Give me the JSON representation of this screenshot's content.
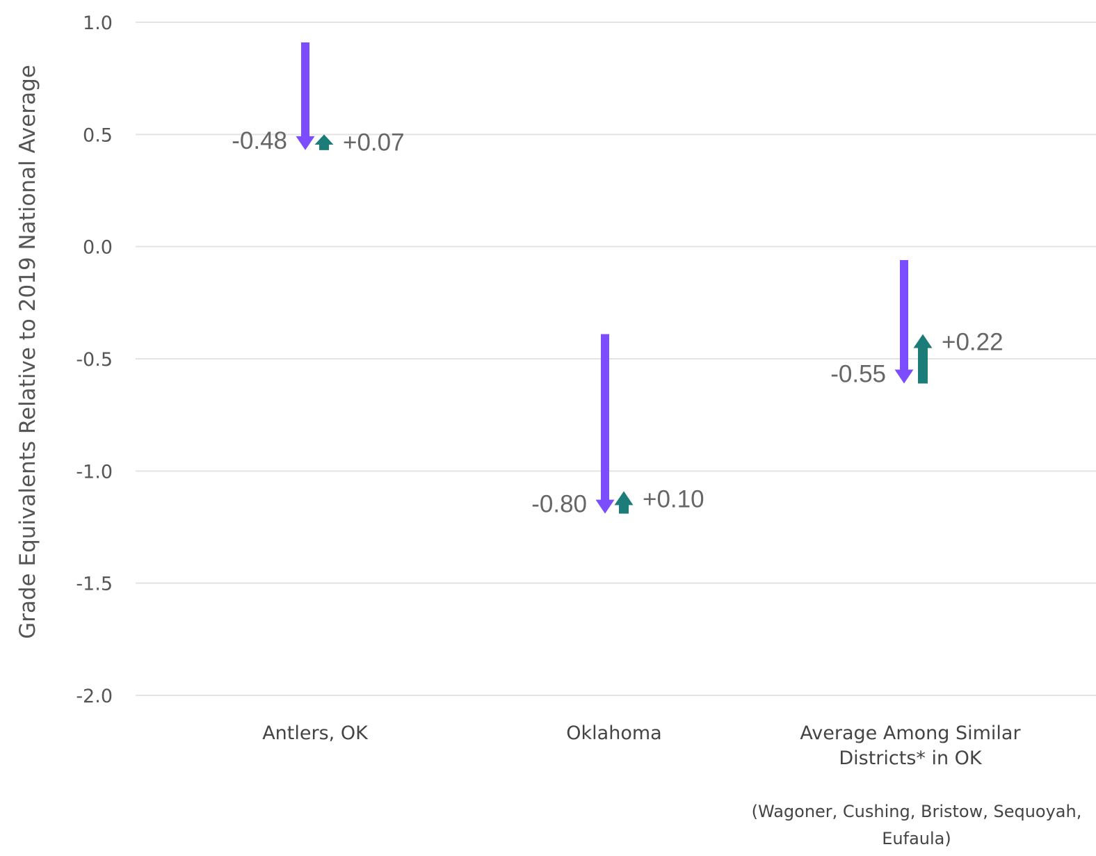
{
  "chart_data": {
    "type": "arrow-change",
    "ylabel": "Grade Equivalents Relative to 2019 National Average",
    "xlabel": "",
    "ylim": [
      -2.0,
      1.0
    ],
    "yticks": [
      1.0,
      0.5,
      0.0,
      -0.5,
      -1.0,
      -1.5,
      -2.0
    ],
    "ytick_labels": [
      "1.0",
      "0.5",
      "0.0",
      "-0.5",
      "-1.0",
      "-1.5",
      "-2.0"
    ],
    "grid": true,
    "colors": {
      "decline": "#7c4dff",
      "recovery": "#1b7c78"
    },
    "categories": [
      {
        "label_lines": [
          "Antlers, OK"
        ],
        "note_lines": [],
        "decline": {
          "from": 0.91,
          "to": 0.43,
          "label": "-0.48"
        },
        "recovery": {
          "from": 0.43,
          "to": 0.5,
          "label": "+0.07"
        }
      },
      {
        "label_lines": [
          "Oklahoma"
        ],
        "note_lines": [],
        "decline": {
          "from": -0.39,
          "to": -1.19,
          "label": "-0.80"
        },
        "recovery": {
          "from": -1.19,
          "to": -1.09,
          "label": "+0.10"
        }
      },
      {
        "label_lines": [
          "Average Among Similar",
          "Districts* in OK"
        ],
        "note_lines": [
          "(Wagoner, Cushing, Bristow, Sequoyah,",
          "Eufaula)"
        ],
        "decline": {
          "from": -0.06,
          "to": -0.61,
          "label": "-0.55"
        },
        "recovery": {
          "from": -0.61,
          "to": -0.39,
          "label": "+0.22"
        }
      }
    ]
  }
}
